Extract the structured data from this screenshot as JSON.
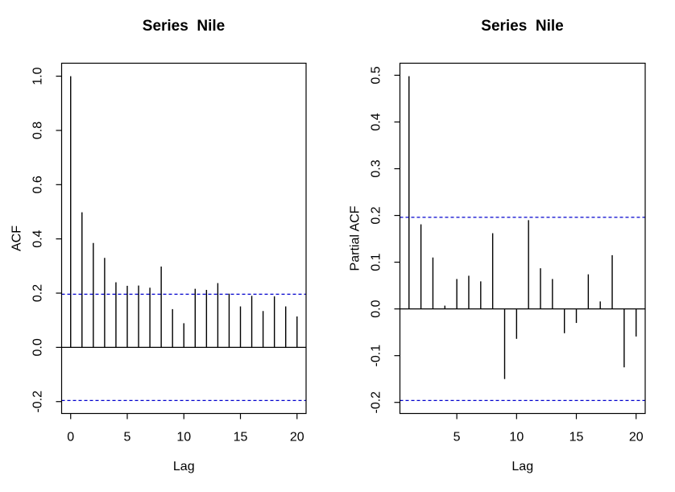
{
  "window": {
    "background": "#ffffff"
  },
  "chart_data": [
    {
      "type": "bar",
      "subtype": "stem-autocorrelation",
      "title": "Series  Nile",
      "xlabel": "Lag",
      "ylabel": "ACF",
      "lag_start": 0,
      "lags": [
        0,
        1,
        2,
        3,
        4,
        5,
        6,
        7,
        8,
        9,
        10,
        11,
        12,
        13,
        14,
        15,
        16,
        17,
        18,
        19,
        20
      ],
      "values": [
        1.0,
        0.498,
        0.385,
        0.33,
        0.24,
        0.227,
        0.228,
        0.22,
        0.298,
        0.141,
        0.089,
        0.216,
        0.212,
        0.237,
        0.198,
        0.151,
        0.19,
        0.134,
        0.188,
        0.151,
        0.114
      ],
      "conf_level": 0.196,
      "conf_lines": [
        0.196,
        -0.196
      ],
      "xlim": [
        0,
        20
      ],
      "ylim": [
        -0.196,
        1.0
      ],
      "x_tick_values": [
        0,
        5,
        10,
        15,
        20
      ],
      "x_tick_labels": [
        "0",
        "5",
        "10",
        "15",
        "20"
      ],
      "y_tick_values": [
        1.0,
        0.8,
        0.6,
        0.4,
        0.2,
        0.0,
        -0.2
      ],
      "y_tick_labels": [
        "1.0",
        "0.8",
        "0.6",
        "0.4",
        "0.2",
        "0.0",
        "-0.2"
      ],
      "grid": false,
      "legend": null,
      "colors": {
        "stem": "#000000",
        "confidence": "#0000CD",
        "axis": "#000000",
        "text": "#000000"
      }
    },
    {
      "type": "bar",
      "subtype": "stem-partial-autocorrelation",
      "title": "Series  Nile",
      "xlabel": "Lag",
      "ylabel": "Partial ACF",
      "lag_start": 1,
      "lags": [
        1,
        2,
        3,
        4,
        5,
        6,
        7,
        8,
        9,
        10,
        11,
        12,
        13,
        14,
        15,
        16,
        17,
        18,
        19,
        20
      ],
      "values": [
        0.498,
        0.181,
        0.11,
        0.007,
        0.064,
        0.071,
        0.059,
        0.162,
        -0.15,
        -0.064,
        0.19,
        0.087,
        0.064,
        -0.052,
        -0.03,
        0.074,
        0.016,
        0.115,
        -0.125,
        -0.059
      ],
      "conf_level": 0.196,
      "conf_lines": [
        0.196,
        -0.196
      ],
      "xlim": [
        1,
        20
      ],
      "ylim": [
        -0.196,
        0.498
      ],
      "x_tick_values": [
        5,
        10,
        15,
        20
      ],
      "x_tick_labels": [
        "5",
        "10",
        "15",
        "20"
      ],
      "y_tick_values": [
        0.5,
        0.4,
        0.3,
        0.2,
        0.1,
        0.0,
        -0.1,
        -0.2
      ],
      "y_tick_labels": [
        "0.5",
        "0.4",
        "0.3",
        "0.2",
        "0.1",
        "0.0",
        "-0.1",
        "-0.2"
      ],
      "grid": false,
      "legend": null,
      "colors": {
        "stem": "#000000",
        "confidence": "#0000CD",
        "axis": "#000000",
        "text": "#000000"
      }
    }
  ]
}
